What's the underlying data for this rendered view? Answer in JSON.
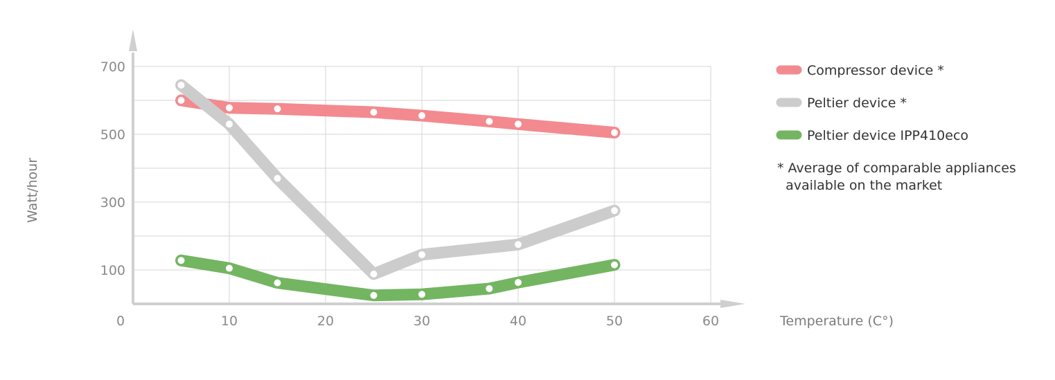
{
  "chart_data": {
    "type": "line",
    "xlabel": "Temperature (C°)",
    "ylabel": "Watt/hour",
    "xlim": [
      0,
      60
    ],
    "ylim": [
      0,
      700
    ],
    "x_ticks": [
      0,
      10,
      20,
      30,
      40,
      50,
      60
    ],
    "y_ticks": [
      100,
      300,
      500,
      700
    ],
    "grid": true,
    "legend_position": "right",
    "series": [
      {
        "name": "Compressor device *",
        "color": "#f28a8f",
        "x": [
          5,
          10,
          15,
          25,
          30,
          37,
          40,
          50
        ],
        "y": [
          600,
          578,
          575,
          565,
          555,
          538,
          530,
          505
        ]
      },
      {
        "name": "Peltier device *",
        "color": "#cccccc",
        "x": [
          5,
          10,
          15,
          25,
          30,
          40,
          50
        ],
        "y": [
          645,
          530,
          370,
          88,
          145,
          175,
          275
        ]
      },
      {
        "name": "Peltier device IPP410eco",
        "color": "#74b562",
        "x": [
          5,
          10,
          15,
          25,
          30,
          37,
          40,
          50
        ],
        "y": [
          128,
          105,
          62,
          25,
          28,
          45,
          63,
          115
        ]
      }
    ],
    "note": "* Average of comparable appliances\n  available on the market"
  }
}
